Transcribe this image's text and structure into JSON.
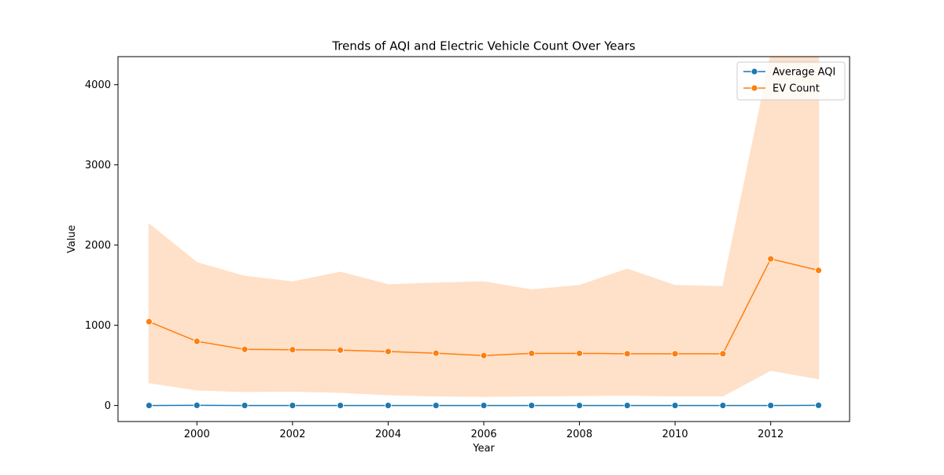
{
  "chart_data": {
    "type": "line",
    "title": "Trends of AQI and Electric Vehicle Count Over Years",
    "xlabel": "Year",
    "ylabel": "Value",
    "xlim": [
      1998.35,
      2013.65
    ],
    "ylim": [
      -200,
      4350
    ],
    "x_ticks": [
      2000,
      2002,
      2004,
      2006,
      2008,
      2010,
      2012
    ],
    "y_ticks": [
      0,
      1000,
      2000,
      3000,
      4000
    ],
    "x": [
      1999,
      2000,
      2001,
      2002,
      2003,
      2004,
      2005,
      2006,
      2007,
      2008,
      2009,
      2010,
      2011,
      2012,
      2013
    ],
    "grid": false,
    "legend": "top-right",
    "series": [
      {
        "name": "Average AQI",
        "color": "#1f77b4",
        "marker": "circle",
        "values": [
          0,
          2,
          0,
          0,
          0,
          0,
          0,
          0,
          0,
          0,
          0,
          0,
          0,
          0,
          2
        ]
      },
      {
        "name": "EV Count",
        "color": "#ff7f0e",
        "marker": "circle",
        "values": [
          1045,
          800,
          700,
          695,
          690,
          673,
          652,
          623,
          650,
          650,
          645,
          645,
          645,
          1828,
          1685
        ],
        "band_lower": [
          285,
          195,
          175,
          180,
          165,
          135,
          120,
          115,
          120,
          125,
          130,
          120,
          120,
          440,
          335
        ],
        "band_upper": [
          2260,
          1780,
          1610,
          1540,
          1660,
          1505,
          1525,
          1540,
          1440,
          1495,
          1700,
          1495,
          1480,
          4360,
          4360
        ],
        "band_color": "#ffe0c8"
      }
    ]
  }
}
